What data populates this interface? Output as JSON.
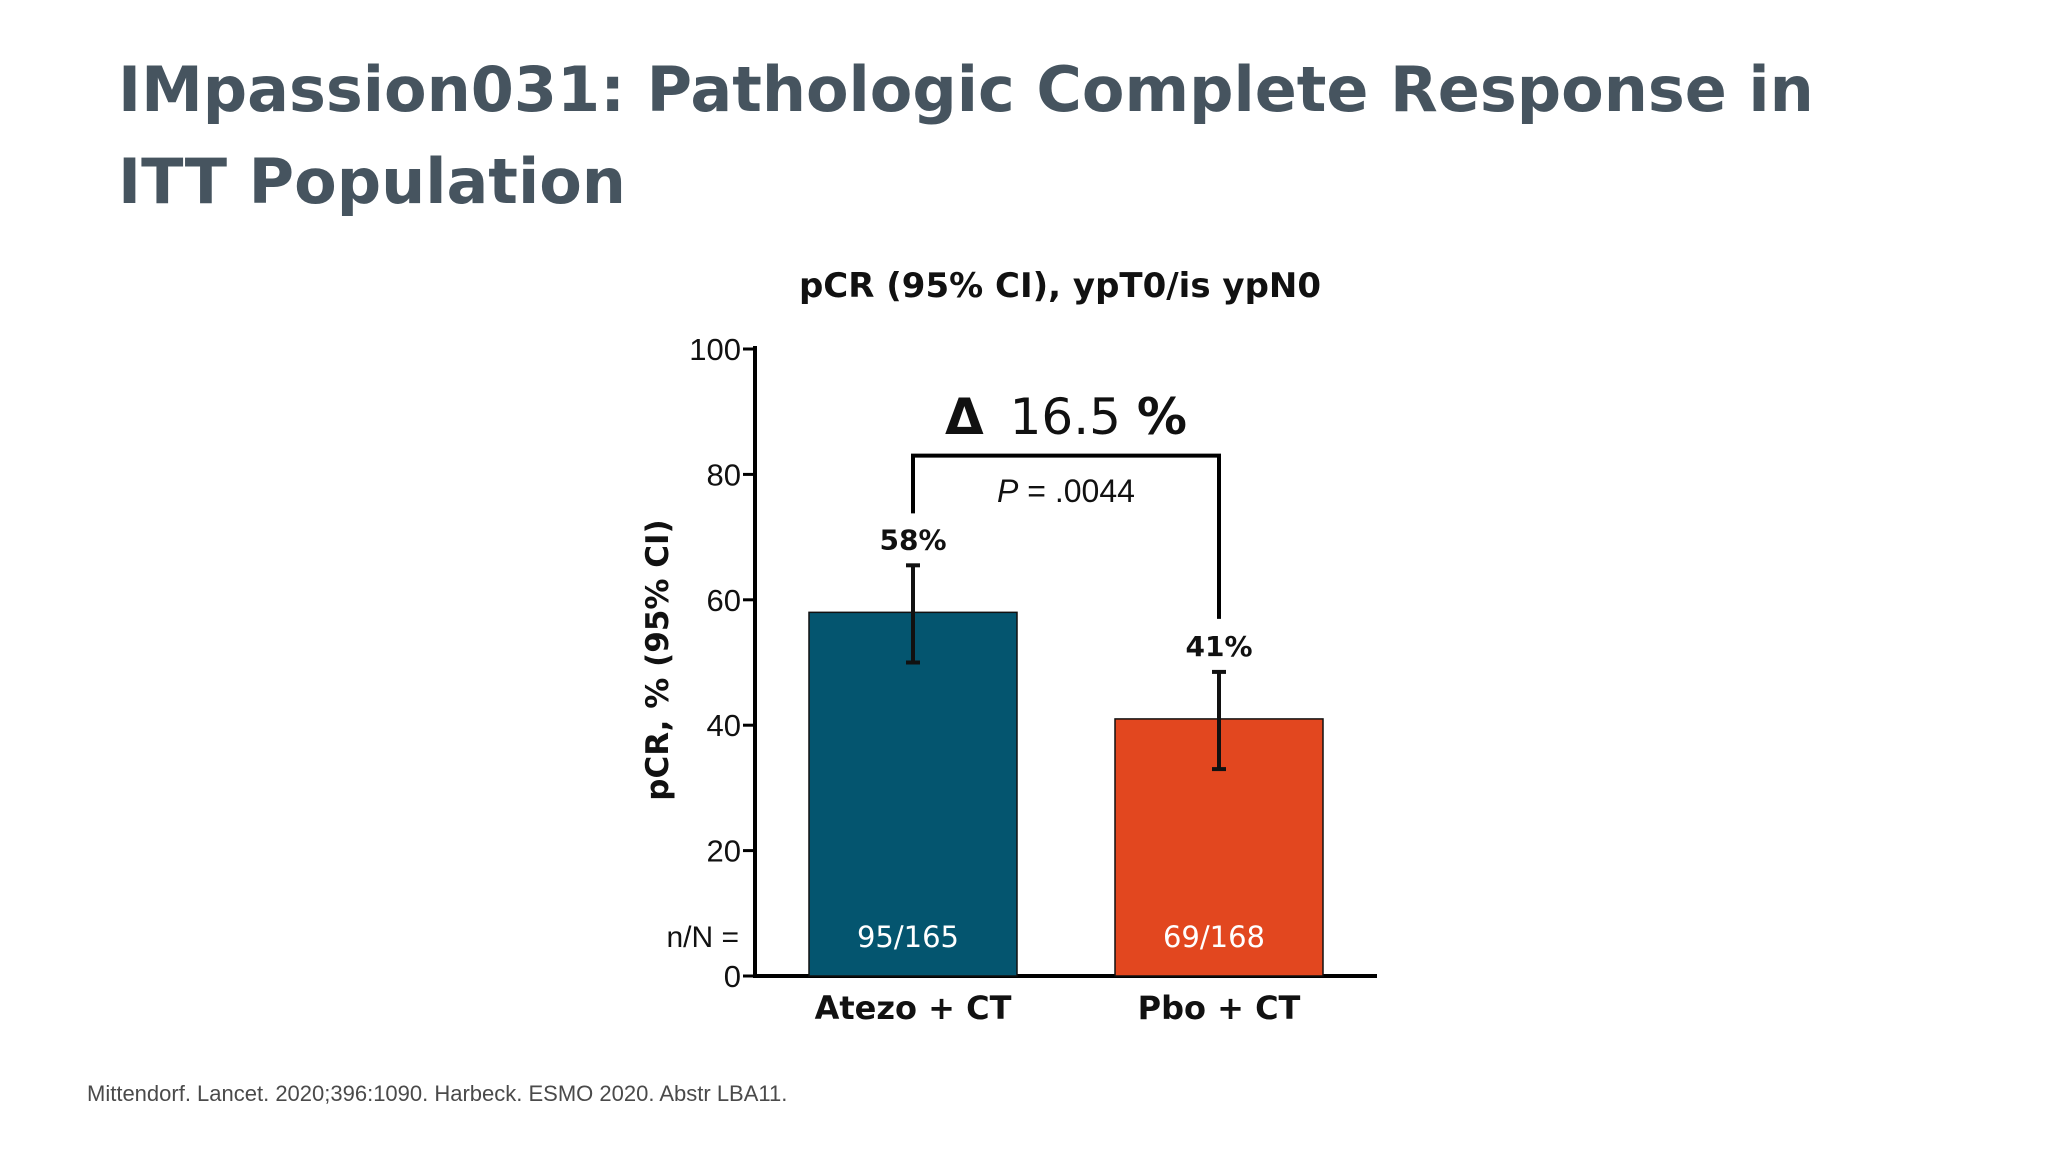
{
  "slide": {
    "title": "IMpassion031: Pathologic Complete Response in ITT Population",
    "footnote": "Mittendorf. Lancet. 2020;396:1090. Harbeck. ESMO 2020. Abstr LBA11."
  },
  "chart_data": {
    "type": "bar",
    "title": "pCR (95% CI), ypT0/is ypN0",
    "xlabel": "",
    "ylabel": "pCR, % (95% CI)",
    "ylim": [
      0,
      100
    ],
    "yticks": [
      0,
      20,
      40,
      60,
      80,
      100
    ],
    "categories": [
      "Atezo + CT",
      "Pbo + CT"
    ],
    "values": [
      58,
      41
    ],
    "value_labels": [
      "58%",
      "41%"
    ],
    "ci_low": [
      50,
      33
    ],
    "ci_high": [
      65.5,
      48.5
    ],
    "n_over_N_label": "n/N =",
    "n_over_N": [
      "95/165",
      "69/168"
    ],
    "colors": [
      "#04556f",
      "#e2471f"
    ],
    "comparison": {
      "delta_symbol": "Δ",
      "delta_value": "16.5",
      "delta_unit": "%",
      "p_symbol": "P",
      "p_text": " = .0044",
      "bracket_level": 83
    }
  }
}
